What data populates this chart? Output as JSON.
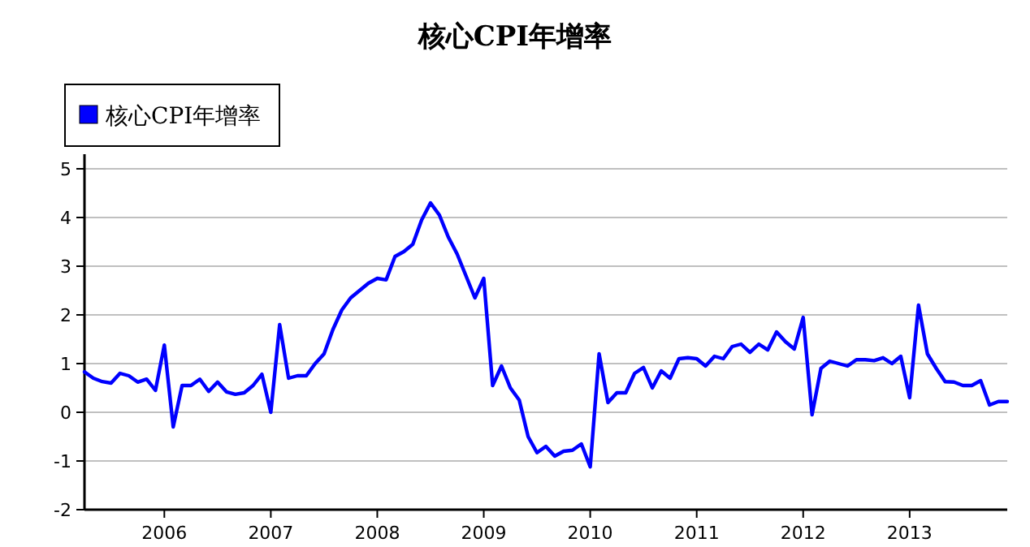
{
  "chart_data": {
    "type": "line",
    "title": "核心CPI年增率",
    "x": [
      "2005-04",
      "2005-05",
      "2005-06",
      "2005-07",
      "2005-08",
      "2005-09",
      "2005-10",
      "2005-11",
      "2005-12",
      "2006-01",
      "2006-02",
      "2006-03",
      "2006-04",
      "2006-05",
      "2006-06",
      "2006-07",
      "2006-08",
      "2006-09",
      "2006-10",
      "2006-11",
      "2006-12",
      "2007-01",
      "2007-02",
      "2007-03",
      "2007-04",
      "2007-05",
      "2007-06",
      "2007-07",
      "2007-08",
      "2007-09",
      "2007-10",
      "2007-11",
      "2007-12",
      "2008-01",
      "2008-02",
      "2008-03",
      "2008-04",
      "2008-05",
      "2008-06",
      "2008-07",
      "2008-08",
      "2008-09",
      "2008-10",
      "2008-11",
      "2008-12",
      "2009-01",
      "2009-02",
      "2009-03",
      "2009-04",
      "2009-05",
      "2009-06",
      "2009-07",
      "2009-08",
      "2009-09",
      "2009-10",
      "2009-11",
      "2009-12",
      "2010-01",
      "2010-02",
      "2010-03",
      "2010-04",
      "2010-05",
      "2010-06",
      "2010-07",
      "2010-08",
      "2010-09",
      "2010-10",
      "2010-11",
      "2010-12",
      "2011-01",
      "2011-02",
      "2011-03",
      "2011-04",
      "2011-05",
      "2011-06",
      "2011-07",
      "2011-08",
      "2011-09",
      "2011-10",
      "2011-11",
      "2011-12",
      "2012-01",
      "2012-02",
      "2012-03",
      "2012-04",
      "2012-05",
      "2012-06",
      "2012-07",
      "2012-08",
      "2012-09",
      "2012-10",
      "2012-11",
      "2012-12",
      "2013-01",
      "2013-02",
      "2013-03",
      "2013-04",
      "2013-05",
      "2013-06",
      "2013-07",
      "2013-08",
      "2013-09",
      "2013-10",
      "2013-11",
      "2013-12"
    ],
    "series": [
      {
        "name": "核心CPI年增率",
        "color": "#0000ff",
        "values": [
          0.83,
          0.7,
          0.63,
          0.6,
          0.8,
          0.75,
          0.62,
          0.68,
          0.45,
          1.38,
          -0.3,
          0.55,
          0.55,
          0.68,
          0.43,
          0.62,
          0.42,
          0.37,
          0.4,
          0.55,
          0.78,
          0.0,
          1.8,
          0.7,
          0.75,
          0.75,
          1.0,
          1.2,
          1.7,
          2.1,
          2.35,
          2.5,
          2.65,
          2.75,
          2.72,
          3.2,
          3.3,
          3.45,
          3.95,
          4.3,
          4.05,
          3.6,
          3.25,
          2.8,
          2.35,
          2.75,
          0.55,
          0.95,
          0.5,
          0.25,
          -0.5,
          -0.83,
          -0.7,
          -0.9,
          -0.8,
          -0.78,
          -0.65,
          -1.12,
          1.2,
          0.2,
          0.4,
          0.4,
          0.8,
          0.92,
          0.5,
          0.85,
          0.7,
          1.1,
          1.12,
          1.1,
          0.95,
          1.15,
          1.1,
          1.35,
          1.4,
          1.23,
          1.4,
          1.28,
          1.65,
          1.45,
          1.3,
          1.95,
          -0.05,
          0.9,
          1.05,
          1.0,
          0.95,
          1.08,
          1.08,
          1.06,
          1.12,
          1.0,
          1.15,
          0.3,
          2.2,
          1.2,
          0.9,
          0.63,
          0.62,
          0.55,
          0.55,
          0.65,
          0.15,
          0.22,
          0.22
        ]
      }
    ],
    "xlim": [
      "2005-04",
      "2013-12"
    ],
    "xticks": [
      "2006",
      "2007",
      "2008",
      "2009",
      "2010",
      "2011",
      "2012",
      "2013"
    ],
    "ylim": [
      -2,
      5.3
    ],
    "yticks": [
      -2,
      -1,
      0,
      1,
      2,
      3,
      4,
      5
    ],
    "grid": "y",
    "legend": "top left",
    "marker": "none",
    "line_style": "solid"
  }
}
